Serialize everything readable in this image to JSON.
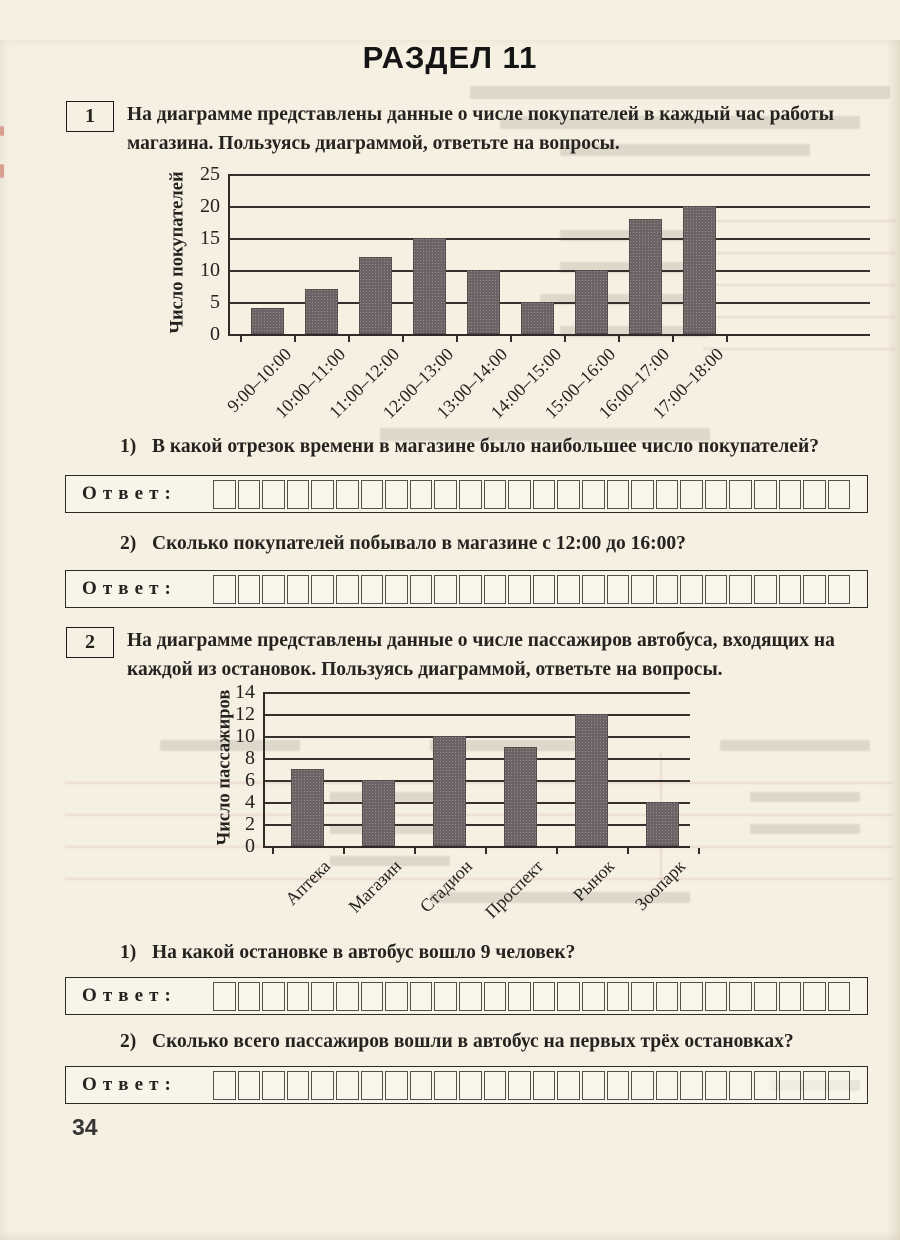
{
  "page": {
    "section_title": "РАЗДЕЛ 11",
    "page_number": "34"
  },
  "problems": [
    {
      "number": "1",
      "statement": "На диаграмме представлены данные о числе покупателей в каждый час работы магазина. Пользуясь диаграммой, ответьте на вопросы.",
      "answer_label": "Ответ:",
      "questions": [
        {
          "label": "1)",
          "text": "В какой отрезок времени в магазине было наибольшее число покупателей?"
        },
        {
          "label": "2)",
          "text": "Сколько покупателей побывало в магазине с 12:00 до 16:00?"
        }
      ]
    },
    {
      "number": "2",
      "statement": "На диаграмме представлены данные о числе пассажиров автобуса, входящих на каждой из остановок. Пользуясь диаграммой, ответьте на вопросы.",
      "answer_label": "Ответ:",
      "questions": [
        {
          "label": "1)",
          "text": "На какой остановке в автобус вошло 9 человек?"
        },
        {
          "label": "2)",
          "text": "Сколько всего пассажиров вошли в автобус на первых трёх остановках?"
        }
      ]
    }
  ],
  "chart_data": [
    {
      "type": "bar",
      "title": "",
      "categories": [
        "9:00–10:00",
        "10:00–11:00",
        "11:00–12:00",
        "12:00–13:00",
        "13:00–14:00",
        "14:00–15:00",
        "15:00–16:00",
        "16:00–17:00",
        "17:00–18:00"
      ],
      "values": [
        4,
        7,
        12,
        15,
        10,
        5,
        10,
        18,
        20
      ],
      "xlabel": "",
      "ylabel": "Число покупателей",
      "ylim": [
        0,
        25
      ],
      "ytick_step": 5,
      "grid": true,
      "legend": "none",
      "bar_color": "#6b6365"
    },
    {
      "type": "bar",
      "title": "",
      "categories": [
        "Аптека",
        "Магазин",
        "Стадион",
        "Проспект",
        "Рынок",
        "Зоопарк"
      ],
      "values": [
        7,
        6,
        10,
        9,
        12,
        4
      ],
      "xlabel": "",
      "ylabel": "Число пассажиров",
      "ylim": [
        0,
        14
      ],
      "ytick_step": 2,
      "grid": true,
      "legend": "none",
      "bar_color": "#6b6365"
    }
  ],
  "colors": {
    "page_background": "#f5f0e2",
    "ink": "#262220",
    "bar_fill": "#6b6365",
    "bleed_pink": "#cd8278"
  }
}
